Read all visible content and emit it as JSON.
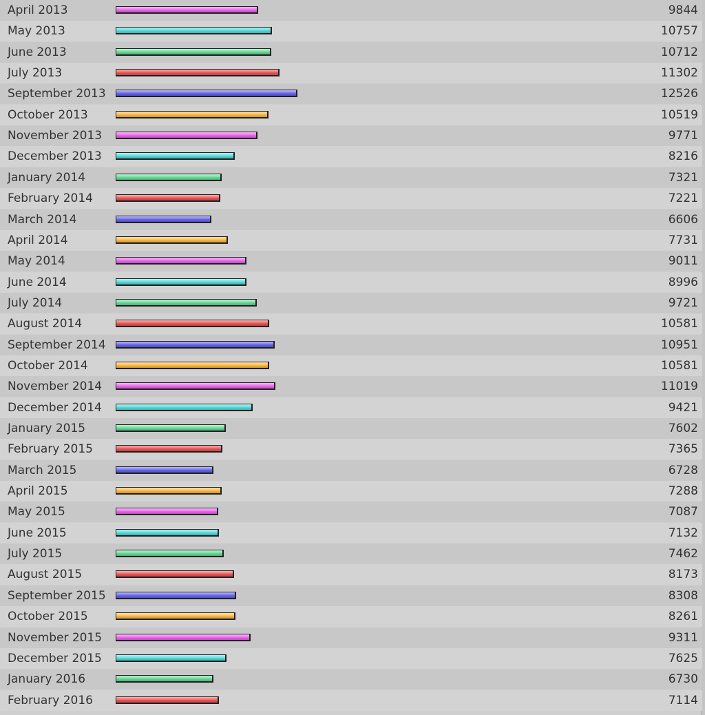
{
  "chart_data": {
    "type": "bar",
    "orientation": "horizontal",
    "title": "",
    "xlabel": "",
    "ylabel": "",
    "grid": false,
    "categories": [
      "April 2013",
      "May 2013",
      "June 2013",
      "July 2013",
      "September 2013",
      "October 2013",
      "November 2013",
      "December 2013",
      "January 2014",
      "February 2014",
      "March 2014",
      "April 2014",
      "May 2014",
      "June 2014",
      "July 2014",
      "August 2014",
      "September 2014",
      "October 2014",
      "November 2014",
      "December 2014",
      "January 2015",
      "February 2015",
      "March 2015",
      "April 2015",
      "May 2015",
      "June 2015",
      "July 2015",
      "August 2015",
      "September 2015",
      "October 2015",
      "November 2015",
      "December 2015",
      "January 2016",
      "February 2016"
    ],
    "values": [
      9844,
      10757,
      10712,
      11302,
      12526,
      10519,
      9771,
      8216,
      7321,
      7221,
      6606,
      7731,
      9011,
      8996,
      9721,
      10581,
      10951,
      10581,
      11019,
      9421,
      7602,
      7365,
      6728,
      7288,
      7087,
      7132,
      7462,
      8173,
      8308,
      8261,
      9311,
      7625,
      6730,
      7114
    ],
    "value_labels": [
      "9844",
      "10757",
      "10712",
      "11302",
      "12526",
      "10519",
      "9771",
      "8216",
      "7321",
      "7221",
      "6606",
      "7731",
      "9011",
      "8996",
      "9721",
      "10581",
      "10951",
      "10581",
      "11019",
      "9421",
      "7602",
      "7365",
      "6728",
      "7288",
      "7087",
      "7132",
      "7462",
      "8173",
      "8308",
      "8261",
      "9311",
      "7625",
      "6730",
      "7114"
    ],
    "bar_colors": [
      "#ee66ee",
      "#55dddd",
      "#66dd99",
      "#ee5555",
      "#6666ee",
      "#ffbb44"
    ]
  }
}
